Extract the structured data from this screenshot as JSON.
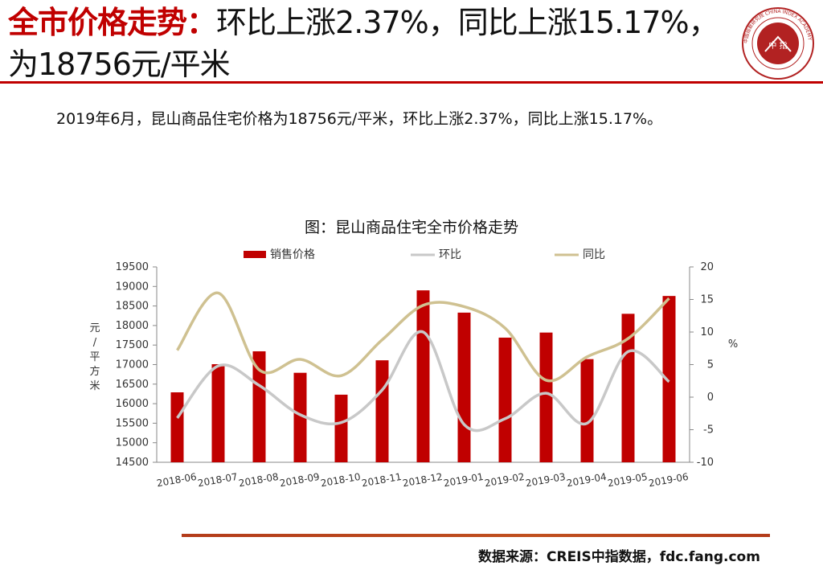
{
  "header": {
    "title_highlight": "全市价格走势：",
    "title_rest": "环比上涨2.37%，同比上涨15.17%，为18756元/平米"
  },
  "logo": {
    "center_text": "中 指",
    "ring_text": "中国指数研究院 CHINA INDEX ACADEMY"
  },
  "summary": "2019年6月，昆山商品住宅价格为18756元/平米，环比上涨2.37%，同比上涨15.17%。",
  "chart_title": "图：昆山商品住宅全市价格走势",
  "source": "数据来源：CREIS中指数据，fdc.fang.com",
  "colors": {
    "accent": "#c00000",
    "bar": "#c00000",
    "mom": "#c8c8c8",
    "yoy": "#cfc191"
  },
  "chart_data": {
    "type": "bar+line",
    "categories": [
      "2018-06",
      "2018-07",
      "2018-08",
      "2018-09",
      "2018-10",
      "2018-11",
      "2018-12",
      "2019-01",
      "2019-02",
      "2019-03",
      "2019-04",
      "2019-05",
      "2019-06"
    ],
    "series": [
      {
        "name": "销售价格",
        "type": "bar",
        "axis": "left",
        "values": [
          16290,
          17010,
          17340,
          16790,
          16230,
          17110,
          18900,
          18330,
          17690,
          17820,
          17140,
          18300,
          18756
        ]
      },
      {
        "name": "环比",
        "type": "line",
        "axis": "right",
        "values": [
          -3.2,
          4.8,
          1.8,
          -2.7,
          -3.9,
          1.1,
          10.0,
          -4.2,
          -3.3,
          0.6,
          -4.0,
          7.0,
          2.37
        ]
      },
      {
        "name": "同比",
        "type": "line",
        "axis": "right",
        "values": [
          7.2,
          16.0,
          4.2,
          5.8,
          3.3,
          8.8,
          14.1,
          13.9,
          10.6,
          2.6,
          6.2,
          9.0,
          15.17
        ]
      }
    ],
    "y_left": {
      "label": "元/平方米",
      "range": [
        14500,
        19500
      ],
      "ticks": [
        14500,
        15000,
        15500,
        16000,
        16500,
        17000,
        17500,
        18000,
        18500,
        19000,
        19500
      ]
    },
    "y_right": {
      "label": "%",
      "range": [
        -10,
        20
      ],
      "ticks": [
        -10,
        -5,
        0,
        5,
        10,
        15,
        20
      ]
    },
    "legend_position": "top",
    "grid": false
  }
}
